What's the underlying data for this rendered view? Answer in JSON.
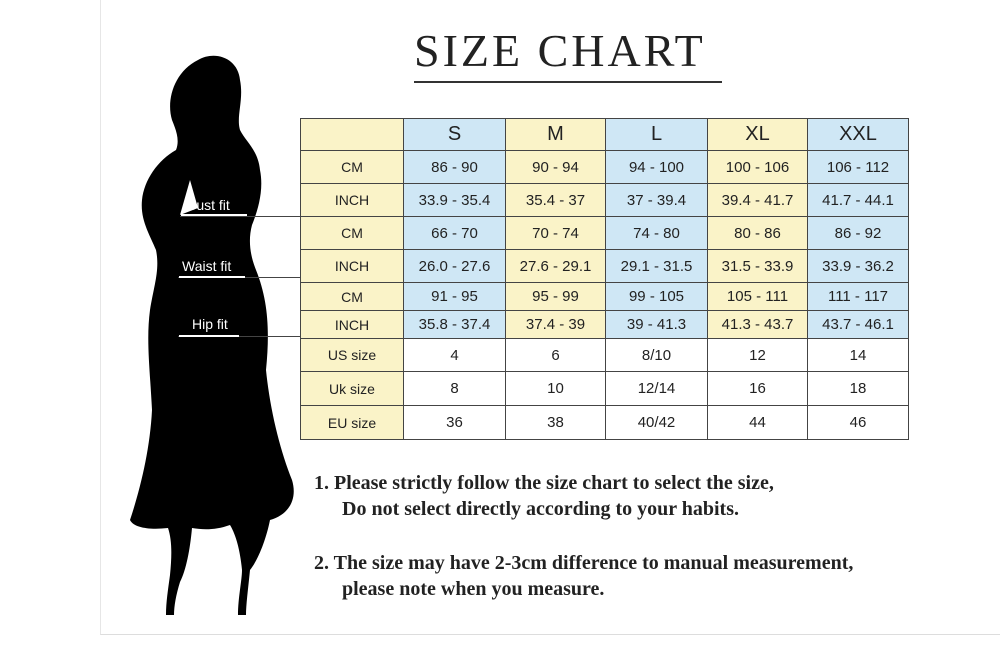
{
  "title": "SIZE CHART",
  "fit_labels": {
    "bust": "Bust fit",
    "waist": "Waist fit",
    "hip": "Hip fit"
  },
  "table": {
    "sizes": [
      "S",
      "M",
      "L",
      "XL",
      "XXL"
    ],
    "rows": [
      {
        "label": "CM",
        "values": [
          "86 - 90",
          "90 - 94",
          "94 - 100",
          "100 - 106",
          "106 - 112"
        ]
      },
      {
        "label": "INCH",
        "values": [
          "33.9 - 35.4",
          "35.4 - 37",
          "37 - 39.4",
          "39.4 - 41.7",
          "41.7 - 44.1"
        ]
      },
      {
        "label": "CM",
        "values": [
          "66 - 70",
          "70 - 74",
          "74 - 80",
          "80 - 86",
          "86 - 92"
        ]
      },
      {
        "label": "INCH",
        "values": [
          "26.0 - 27.6",
          "27.6 - 29.1",
          "29.1 - 31.5",
          "31.5 - 33.9",
          "33.9 - 36.2"
        ]
      },
      {
        "label": "CM",
        "values": [
          "91 - 95",
          "95 - 99",
          "99 - 105",
          "105 - 111",
          "111 - 117"
        ]
      },
      {
        "label": "INCH",
        "values": [
          "35.8 - 37.4",
          "37.4 - 39",
          "39 - 41.3",
          "41.3 - 43.7",
          "43.7 - 46.1"
        ]
      },
      {
        "label": "US size",
        "values": [
          "4",
          "6",
          "8/10",
          "12",
          "14"
        ]
      },
      {
        "label": "Uk size",
        "values": [
          "8",
          "10",
          "12/14",
          "16",
          "18"
        ]
      },
      {
        "label": "EU size",
        "values": [
          "36",
          "38",
          "40/42",
          "44",
          "46"
        ]
      }
    ]
  },
  "notes": [
    {
      "line1": "1.  Please strictly follow the size chart to select the size,",
      "line2": "Do not select directly according to your habits."
    },
    {
      "line1": "2.  The size may have 2-3cm difference  to manual measurement,",
      "line2": "please note when you measure."
    }
  ],
  "colors": {
    "yellow": "#faf3c8",
    "blue": "#cfe7f5"
  }
}
